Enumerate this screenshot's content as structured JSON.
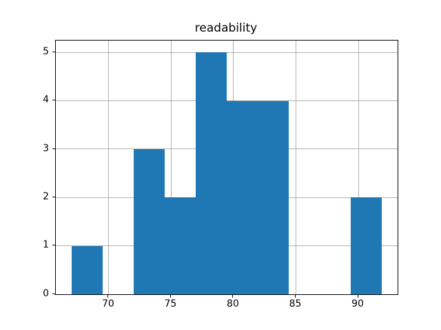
{
  "title": "readability",
  "chart_data": {
    "type": "bar",
    "subtype": "histogram",
    "title": "readability",
    "xlabel": "",
    "ylabel": "",
    "bin_edges": [
      67.0,
      69.49,
      71.98,
      74.47,
      76.96,
      79.45,
      81.94,
      84.43,
      86.92,
      89.41,
      91.9
    ],
    "counts": [
      1,
      0,
      3,
      2,
      5,
      4,
      4,
      0,
      0,
      2
    ],
    "x_ticks": [
      "70",
      "75",
      "80",
      "85",
      "90"
    ],
    "x_tick_values": [
      70,
      75,
      80,
      85,
      90
    ],
    "y_ticks": [
      "0",
      "1",
      "2",
      "3",
      "4",
      "5"
    ],
    "y_tick_values": [
      0,
      1,
      2,
      3,
      4,
      5
    ],
    "xlim": [
      65.755,
      93.145
    ],
    "ylim": [
      0,
      5.25
    ],
    "grid": true,
    "legend": false,
    "bar_color": "#1f77b4",
    "grid_color": "#b0b0b0",
    "axis_color": "#000000",
    "text_color": "#000000",
    "background_color": "#ffffff"
  }
}
